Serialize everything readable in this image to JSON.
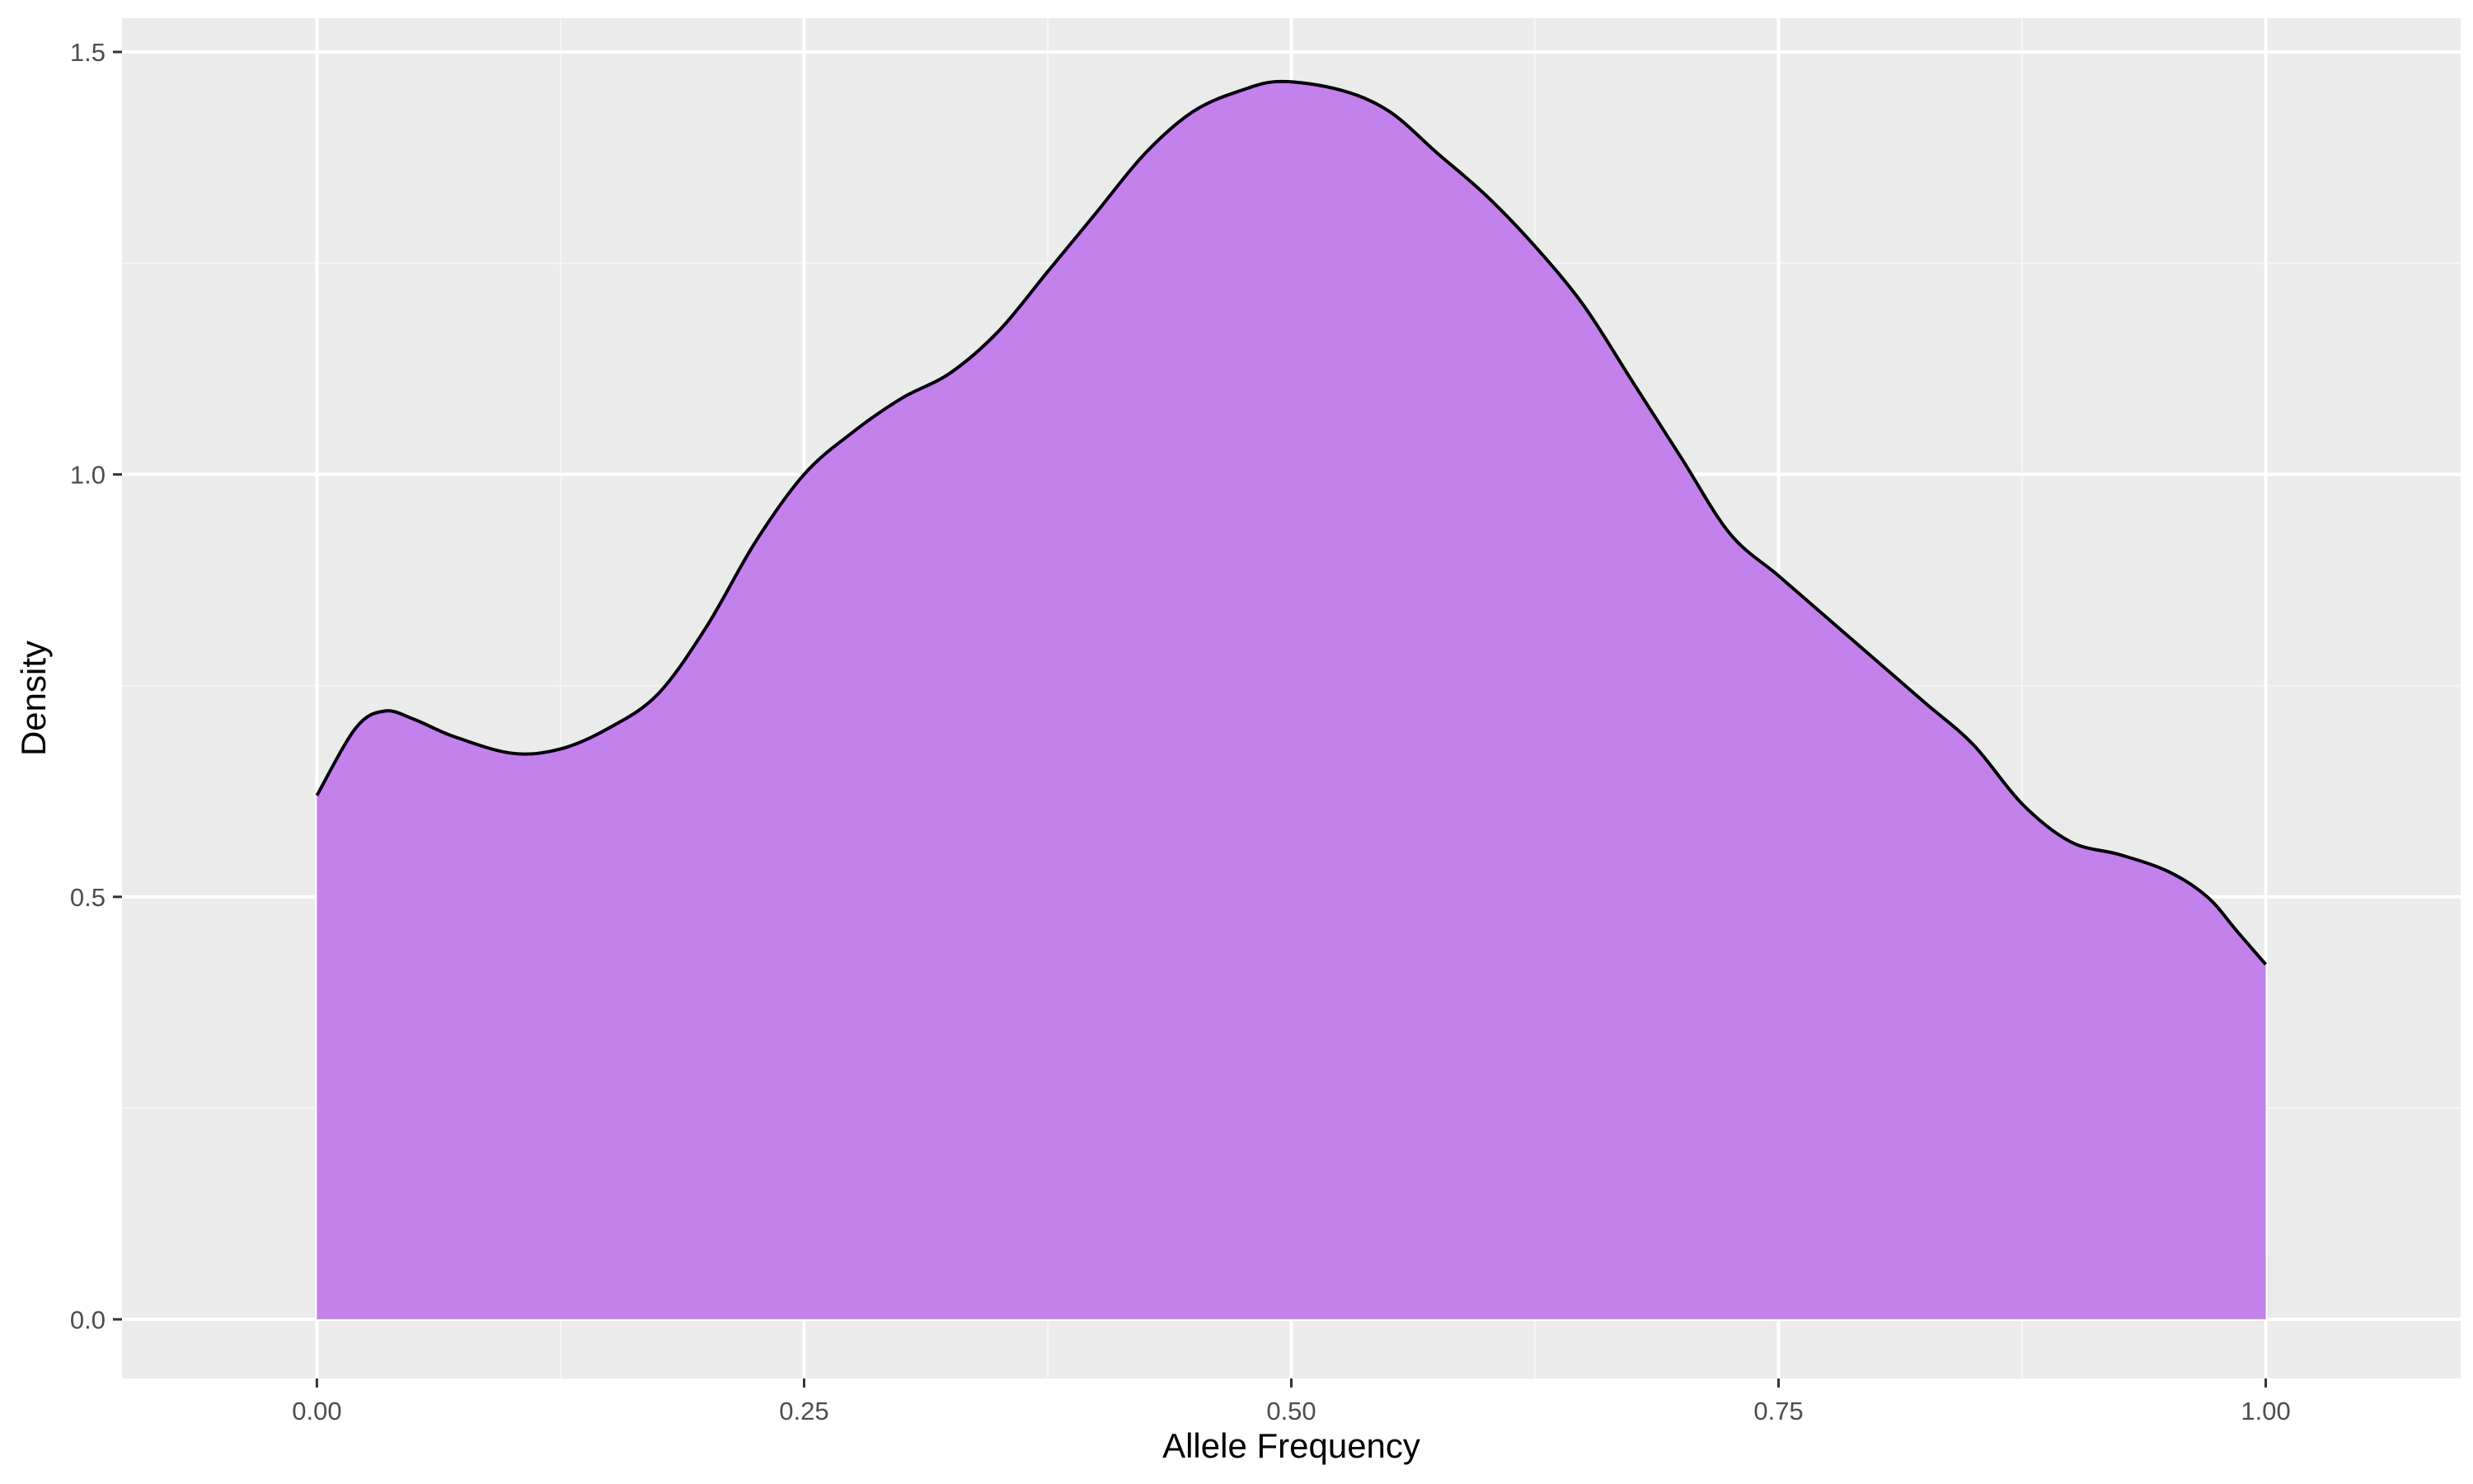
{
  "chart_data": {
    "type": "area",
    "title": "",
    "xlabel": "Allele Frequency",
    "ylabel": "Density",
    "xlim": [
      -0.1,
      1.1
    ],
    "ylim": [
      -0.07,
      1.54
    ],
    "x_ticks": [
      0.0,
      0.25,
      0.5,
      0.75,
      1.0
    ],
    "x_tick_labels": [
      "0.00",
      "0.25",
      "0.50",
      "0.75",
      "1.00"
    ],
    "y_ticks": [
      0.0,
      0.5,
      1.0,
      1.5
    ],
    "y_tick_labels": [
      "0.0",
      "0.5",
      "1.0",
      "1.5"
    ],
    "grid": true,
    "legend": "none",
    "series": [
      {
        "x": [
          0.0,
          0.02,
          0.035,
          0.05,
          0.07,
          0.1,
          0.125,
          0.15,
          0.175,
          0.2,
          0.225,
          0.25,
          0.275,
          0.3,
          0.325,
          0.35,
          0.375,
          0.4,
          0.425,
          0.45,
          0.475,
          0.495,
          0.525,
          0.55,
          0.575,
          0.6,
          0.625,
          0.65,
          0.675,
          0.7,
          0.725,
          0.75,
          0.775,
          0.8,
          0.825,
          0.85,
          0.875,
          0.9,
          0.925,
          0.95,
          0.97,
          0.985,
          1.0
        ],
        "y": [
          0.62,
          0.7,
          0.72,
          0.71,
          0.69,
          0.67,
          0.675,
          0.7,
          0.74,
          0.82,
          0.92,
          1.0,
          1.05,
          1.09,
          1.12,
          1.17,
          1.24,
          1.31,
          1.38,
          1.43,
          1.455,
          1.465,
          1.455,
          1.43,
          1.38,
          1.33,
          1.27,
          1.2,
          1.11,
          1.02,
          0.93,
          0.88,
          0.83,
          0.78,
          0.73,
          0.68,
          0.61,
          0.565,
          0.55,
          0.53,
          0.5,
          0.46,
          0.42
        ]
      }
    ],
    "colors": {
      "panel_background": "#ebebeb",
      "grid_major": "#ffffff",
      "grid_minor": "#f5f5f5",
      "fill": "#bf7aeb",
      "line": "#000000"
    }
  }
}
